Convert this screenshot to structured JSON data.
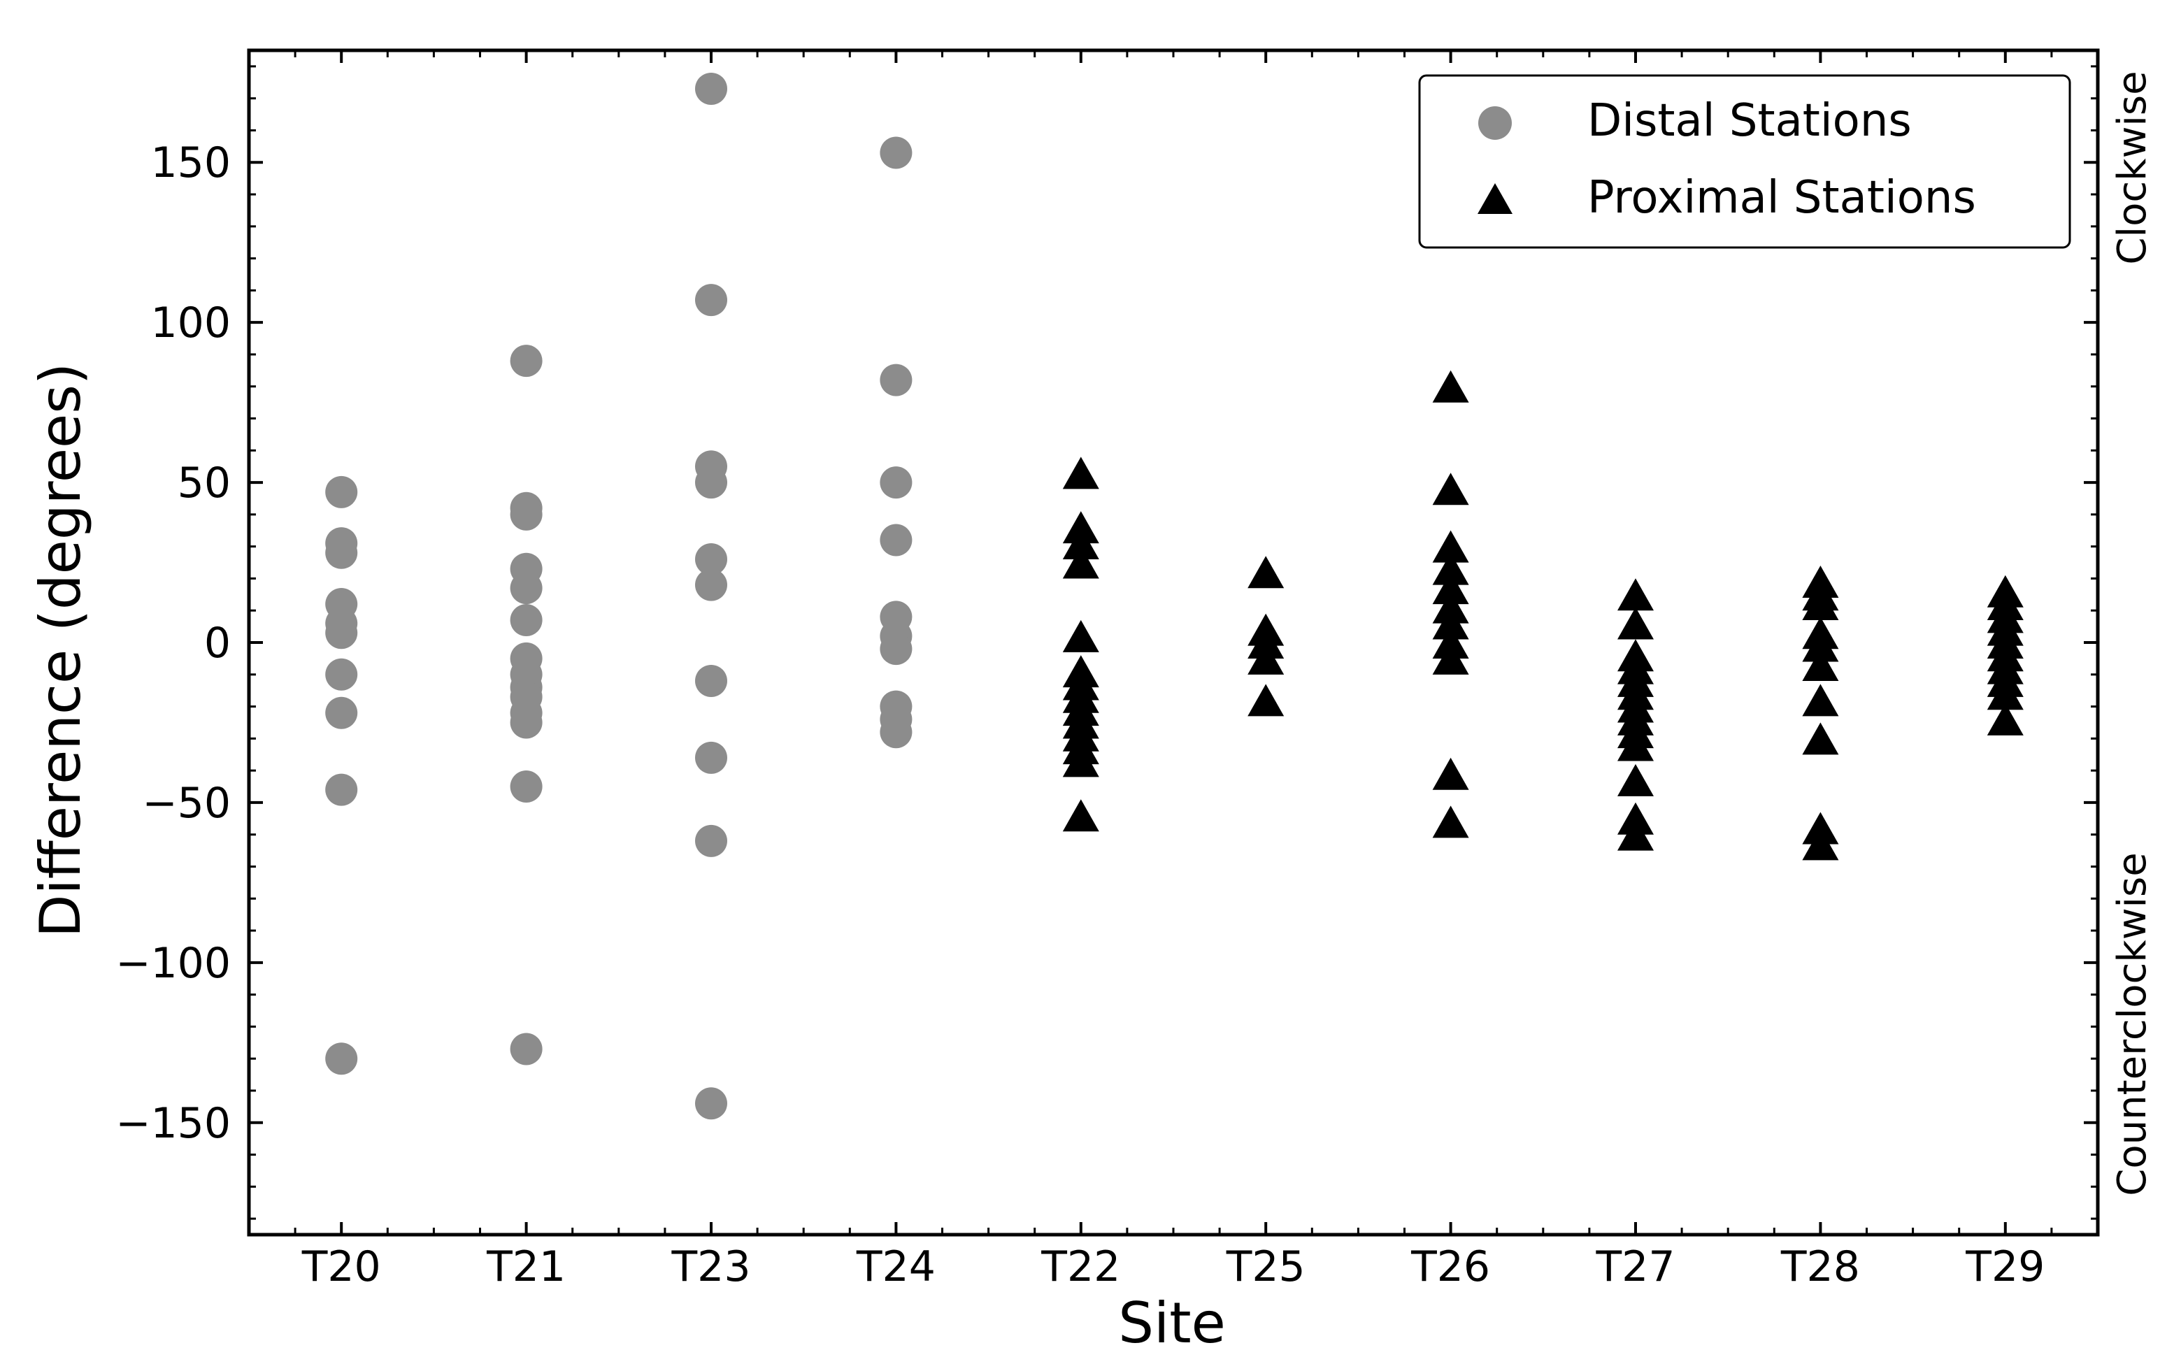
{
  "chart_data": {
    "type": "scatter",
    "title": "",
    "xlabel": "Site",
    "ylabel": "Difference (degrees)",
    "right_labels": {
      "top": "Clockwise",
      "bottom": "Counterclockwise"
    },
    "categories": [
      "T20",
      "T21",
      "T23",
      "T24",
      "T22",
      "T25",
      "T26",
      "T27",
      "T28",
      "T29"
    ],
    "ylim": [
      -185,
      185
    ],
    "yticks": [
      -150,
      -100,
      -50,
      0,
      50,
      100,
      150
    ],
    "ytick_labels": [
      "−150",
      "−100",
      "−50",
      "0",
      "50",
      "100",
      "150"
    ],
    "grid": false,
    "legend_position": "top-right",
    "series": [
      {
        "name": "Distal Stations",
        "marker": "circle",
        "color": "#8c8c8c",
        "points": [
          {
            "x": "T20",
            "y": 47
          },
          {
            "x": "T20",
            "y": 31
          },
          {
            "x": "T20",
            "y": 28
          },
          {
            "x": "T20",
            "y": 12
          },
          {
            "x": "T20",
            "y": 6
          },
          {
            "x": "T20",
            "y": 3
          },
          {
            "x": "T20",
            "y": -10
          },
          {
            "x": "T20",
            "y": -22
          },
          {
            "x": "T20",
            "y": -46
          },
          {
            "x": "T20",
            "y": -130
          },
          {
            "x": "T21",
            "y": 88
          },
          {
            "x": "T21",
            "y": 42
          },
          {
            "x": "T21",
            "y": 40
          },
          {
            "x": "T21",
            "y": 23
          },
          {
            "x": "T21",
            "y": 17
          },
          {
            "x": "T21",
            "y": 7
          },
          {
            "x": "T21",
            "y": -5
          },
          {
            "x": "T21",
            "y": -10
          },
          {
            "x": "T21",
            "y": -14
          },
          {
            "x": "T21",
            "y": -17
          },
          {
            "x": "T21",
            "y": -22
          },
          {
            "x": "T21",
            "y": -25
          },
          {
            "x": "T21",
            "y": -45
          },
          {
            "x": "T21",
            "y": -127
          },
          {
            "x": "T23",
            "y": 173
          },
          {
            "x": "T23",
            "y": 107
          },
          {
            "x": "T23",
            "y": 55
          },
          {
            "x": "T23",
            "y": 50
          },
          {
            "x": "T23",
            "y": 26
          },
          {
            "x": "T23",
            "y": 18
          },
          {
            "x": "T23",
            "y": -12
          },
          {
            "x": "T23",
            "y": -36
          },
          {
            "x": "T23",
            "y": -62
          },
          {
            "x": "T23",
            "y": -144
          },
          {
            "x": "T24",
            "y": 153
          },
          {
            "x": "T24",
            "y": 82
          },
          {
            "x": "T24",
            "y": 50
          },
          {
            "x": "T24",
            "y": 32
          },
          {
            "x": "T24",
            "y": 8
          },
          {
            "x": "T24",
            "y": 2
          },
          {
            "x": "T24",
            "y": -2
          },
          {
            "x": "T24",
            "y": -20
          },
          {
            "x": "T24",
            "y": -24
          },
          {
            "x": "T24",
            "y": -28
          }
        ]
      },
      {
        "name": "Proximal Stations",
        "marker": "triangle",
        "color": "#000000",
        "points": [
          {
            "x": "T22",
            "y": 52
          },
          {
            "x": "T22",
            "y": 35
          },
          {
            "x": "T22",
            "y": 30
          },
          {
            "x": "T22",
            "y": 24
          },
          {
            "x": "T22",
            "y": 1
          },
          {
            "x": "T22",
            "y": -10
          },
          {
            "x": "T22",
            "y": -14
          },
          {
            "x": "T22",
            "y": -18
          },
          {
            "x": "T22",
            "y": -22
          },
          {
            "x": "T22",
            "y": -26
          },
          {
            "x": "T22",
            "y": -30
          },
          {
            "x": "T22",
            "y": -34
          },
          {
            "x": "T22",
            "y": -38
          },
          {
            "x": "T22",
            "y": -55
          },
          {
            "x": "T25",
            "y": 21
          },
          {
            "x": "T25",
            "y": 3
          },
          {
            "x": "T25",
            "y": -1
          },
          {
            "x": "T25",
            "y": -6
          },
          {
            "x": "T25",
            "y": -19
          },
          {
            "x": "T26",
            "y": 79
          },
          {
            "x": "T26",
            "y": 47
          },
          {
            "x": "T26",
            "y": 29
          },
          {
            "x": "T26",
            "y": 22
          },
          {
            "x": "T26",
            "y": 16
          },
          {
            "x": "T26",
            "y": 10
          },
          {
            "x": "T26",
            "y": 5
          },
          {
            "x": "T26",
            "y": -1
          },
          {
            "x": "T26",
            "y": -6
          },
          {
            "x": "T26",
            "y": -42
          },
          {
            "x": "T26",
            "y": -57
          },
          {
            "x": "T27",
            "y": 14
          },
          {
            "x": "T27",
            "y": 5
          },
          {
            "x": "T27",
            "y": -5
          },
          {
            "x": "T27",
            "y": -9
          },
          {
            "x": "T27",
            "y": -13
          },
          {
            "x": "T27",
            "y": -17
          },
          {
            "x": "T27",
            "y": -21
          },
          {
            "x": "T27",
            "y": -25
          },
          {
            "x": "T27",
            "y": -29
          },
          {
            "x": "T27",
            "y": -33
          },
          {
            "x": "T27",
            "y": -44
          },
          {
            "x": "T27",
            "y": -56
          },
          {
            "x": "T27",
            "y": -61
          },
          {
            "x": "T28",
            "y": 18
          },
          {
            "x": "T28",
            "y": 14
          },
          {
            "x": "T28",
            "y": 11
          },
          {
            "x": "T28",
            "y": 2
          },
          {
            "x": "T28",
            "y": -2
          },
          {
            "x": "T28",
            "y": -8
          },
          {
            "x": "T28",
            "y": -19
          },
          {
            "x": "T28",
            "y": -31
          },
          {
            "x": "T28",
            "y": -59
          },
          {
            "x": "T28",
            "y": -64
          },
          {
            "x": "T29",
            "y": 15
          },
          {
            "x": "T29",
            "y": 11
          },
          {
            "x": "T29",
            "y": 7
          },
          {
            "x": "T29",
            "y": 3
          },
          {
            "x": "T29",
            "y": -1
          },
          {
            "x": "T29",
            "y": -5
          },
          {
            "x": "T29",
            "y": -9
          },
          {
            "x": "T29",
            "y": -13
          },
          {
            "x": "T29",
            "y": -17
          },
          {
            "x": "T29",
            "y": -25
          }
        ]
      }
    ]
  }
}
